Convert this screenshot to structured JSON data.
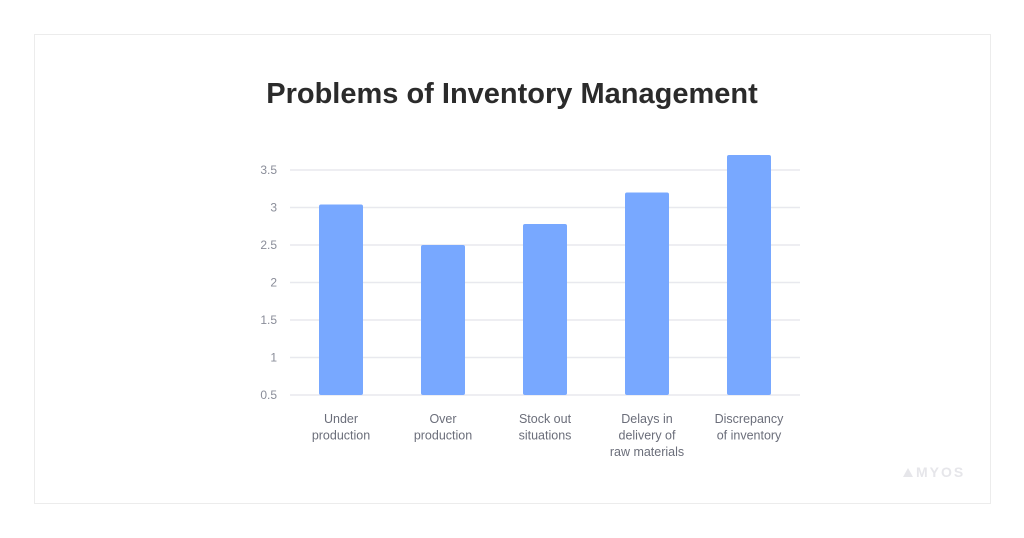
{
  "chart_data": {
    "type": "bar",
    "title": "Problems of Inventory Management",
    "categories": [
      [
        "Under",
        "production"
      ],
      [
        "Over",
        "production"
      ],
      [
        "Stock out",
        "situations"
      ],
      [
        "Delays in",
        "delivery of",
        "raw materials"
      ],
      [
        "Discrepancy",
        "of inventory"
      ]
    ],
    "values": [
      3.04,
      2.5,
      2.78,
      3.2,
      3.7
    ],
    "ylim": [
      0.5,
      3.5
    ],
    "yticks": [
      "0.5",
      "1",
      "1.5",
      "2",
      "2.5",
      "3",
      "3.5"
    ],
    "grid": true,
    "bar_color": "#78a8ff",
    "xlabel": "",
    "ylabel": ""
  },
  "logo": "MYOS"
}
